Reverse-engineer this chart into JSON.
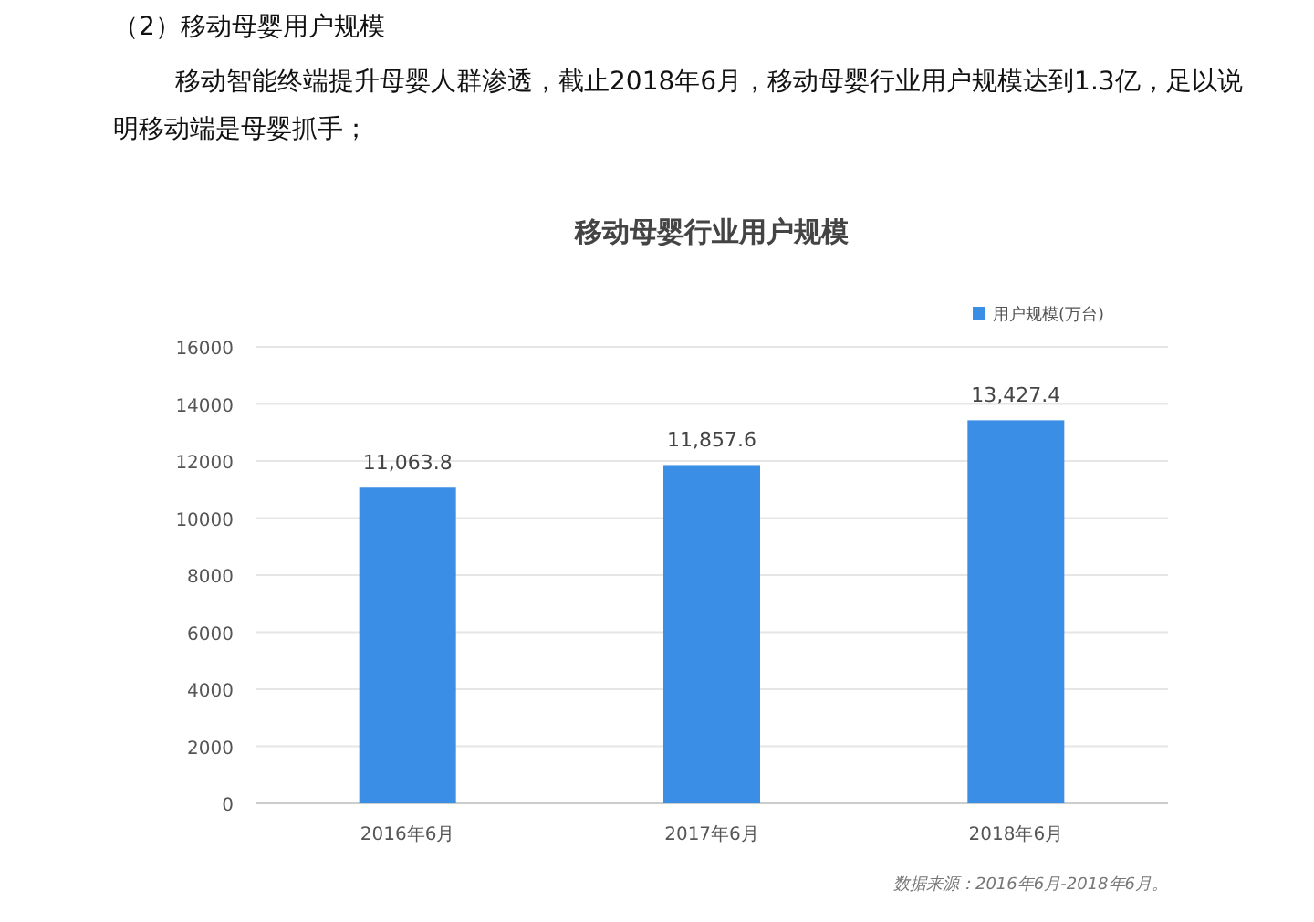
{
  "chart_data": {
    "type": "bar",
    "title": "移动母婴行业用户规模",
    "categories": [
      "2016年6月",
      "2017年6月",
      "2018年6月"
    ],
    "series": [
      {
        "name": "用户规模(万台)",
        "color": "#3a8ee6",
        "values": [
          11063.8,
          11857.6,
          13427.4
        ]
      }
    ],
    "value_labels": [
      "11,063.8",
      "11,857.6",
      "13,427.4"
    ],
    "ylim": [
      0,
      16000
    ],
    "yticks": [
      0,
      2000,
      4000,
      6000,
      8000,
      10000,
      12000,
      14000,
      16000
    ],
    "grid": "y",
    "legend": "top right",
    "annotations": [
      "（2）移动母婴用户规模",
      "移动智能终端提升母婴人群渗透，截止2018年6月，移动母婴行业用户规模达到1.3亿，足以说明移动端是母婴抓手；",
      "数据来源：2016年6月-2018年6月。"
    ]
  }
}
